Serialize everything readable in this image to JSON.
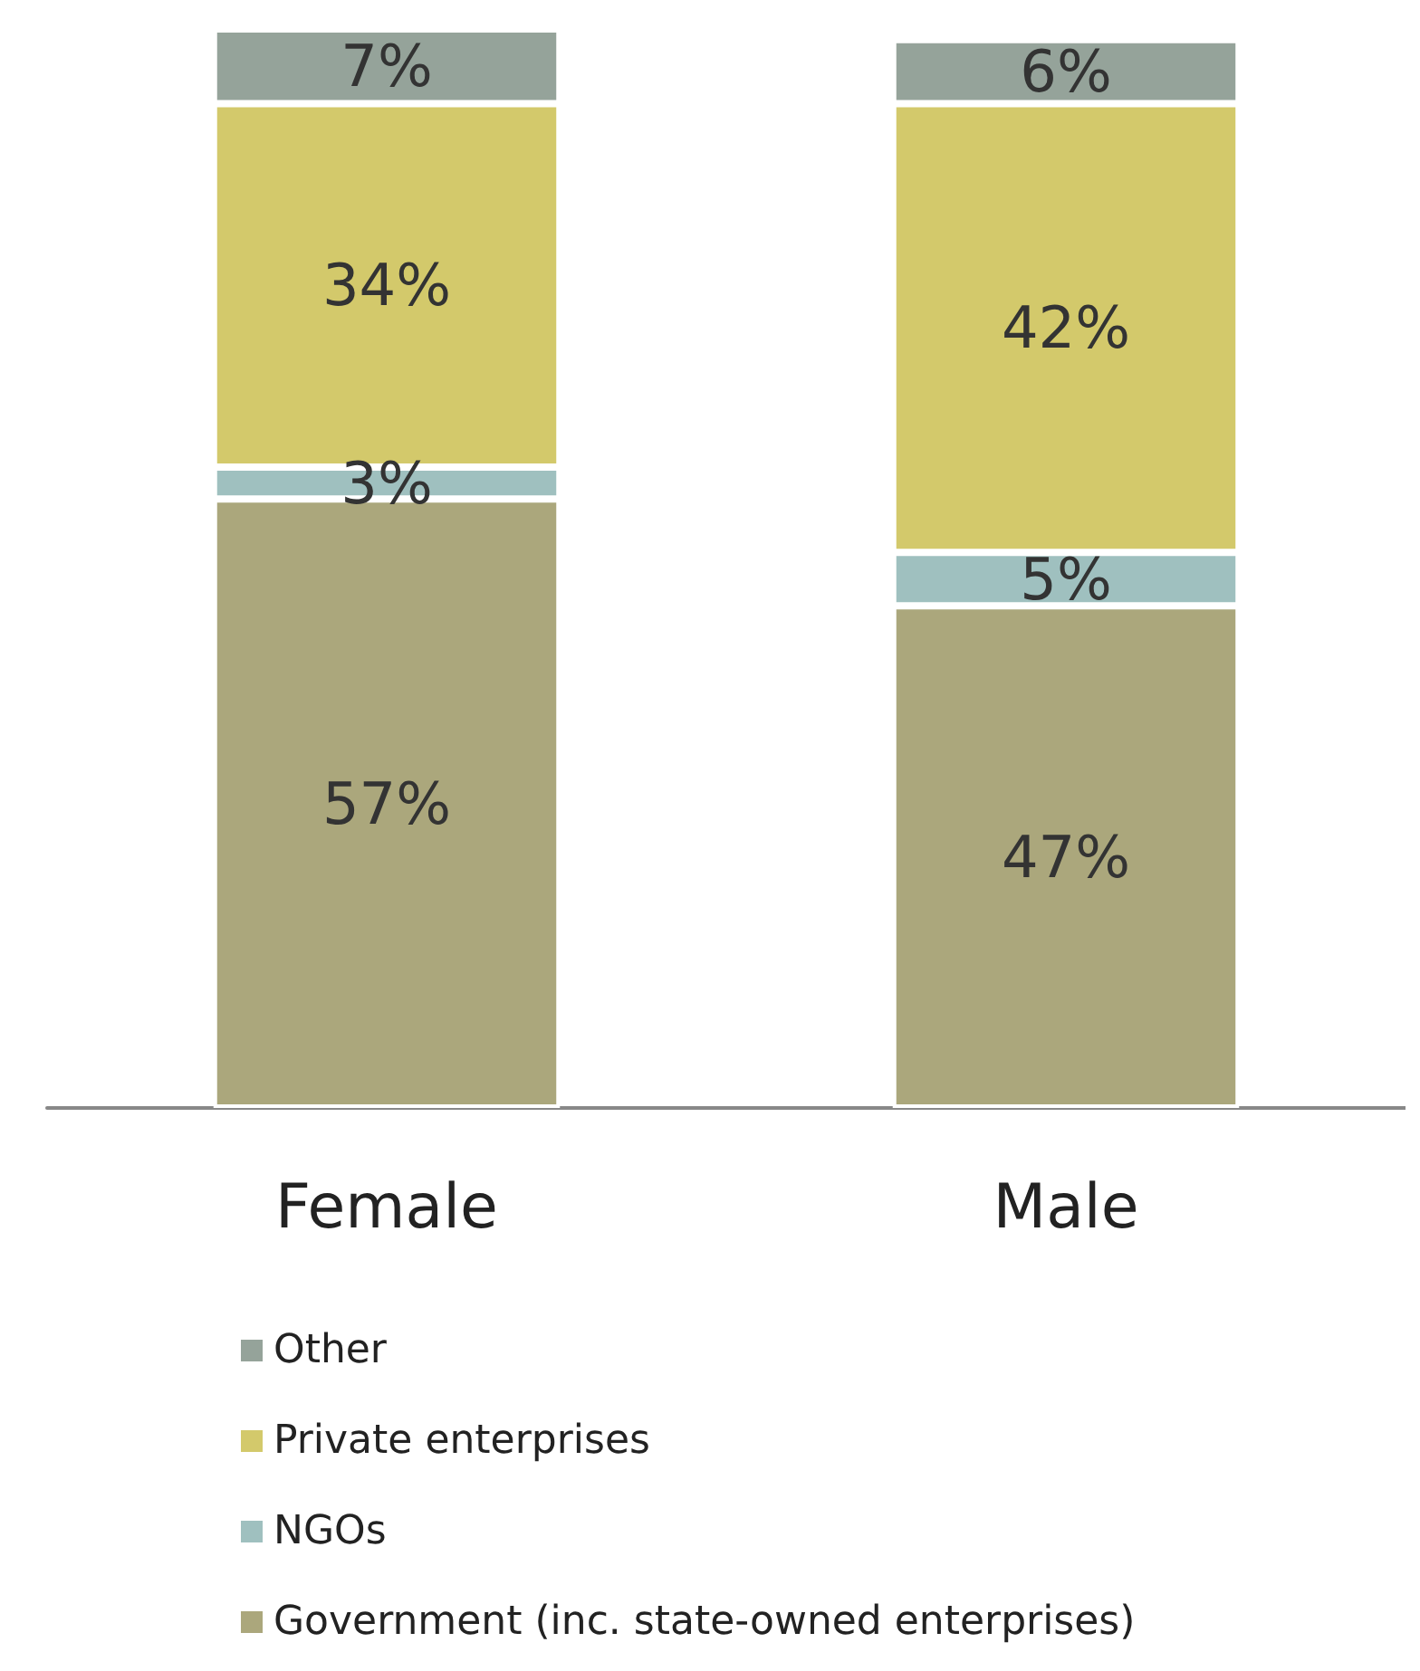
{
  "chart_data": {
    "type": "bar",
    "stacked": true,
    "categories": [
      "Female",
      "Male"
    ],
    "legend": "bottom left",
    "series": [
      {
        "name": "Government (inc. state-owned enterprises)",
        "color": "#aba77c",
        "values": [
          57,
          47
        ],
        "value_labels": [
          "57%",
          "47%"
        ]
      },
      {
        "name": "NGOs",
        "color": "#9fc0bf",
        "values": [
          3,
          5
        ],
        "value_labels": [
          "3%",
          "5%"
        ]
      },
      {
        "name": "Private enterprises",
        "color": "#d3c96b",
        "values": [
          34,
          42
        ],
        "value_labels": [
          "34%",
          "42%"
        ]
      },
      {
        "name": "Other",
        "color": "#95a39a",
        "values": [
          7,
          6
        ],
        "value_labels": [
          "7%",
          "6%"
        ]
      }
    ]
  }
}
